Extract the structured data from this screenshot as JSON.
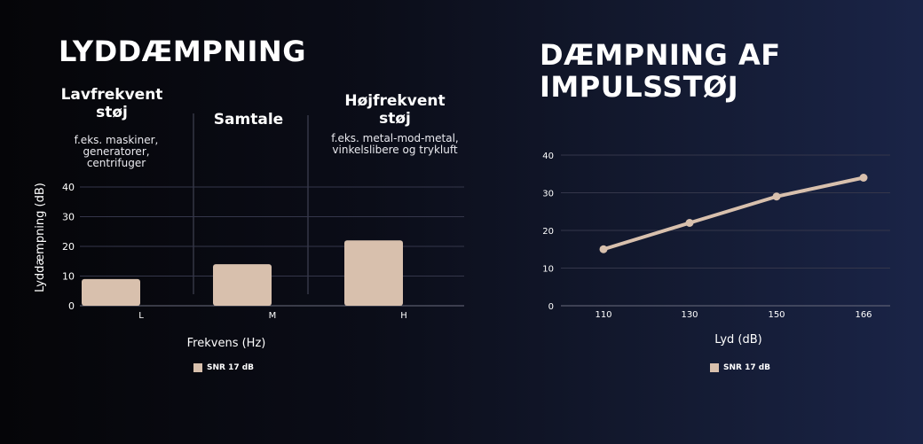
{
  "left": {
    "title": "LYDDÆMPNING",
    "bands": [
      {
        "title_lines": [
          "Lavfrekvent",
          "støj"
        ],
        "desc_lines": [
          "f.eks. maskiner,",
          "generatorer,",
          "centrifuger"
        ]
      },
      {
        "title_lines": [
          "Samtale"
        ],
        "desc_lines": []
      },
      {
        "title_lines": [
          "Højfrekvent",
          "støj"
        ],
        "desc_lines": [
          "f.eks. metal-mod-metal,",
          "vinkelslibere og trykluft"
        ]
      }
    ]
  },
  "right": {
    "title_lines": [
      "DÆMPNING AF",
      "IMPULSSTØJ"
    ]
  },
  "colors": {
    "series": "#d8c0ad",
    "grid": "#34364a",
    "text": "#ffffff"
  },
  "chart_data": [
    {
      "type": "bar",
      "categories": [
        "L",
        "M",
        "H"
      ],
      "series": [
        {
          "name": "SNR 17 dB",
          "values": [
            9,
            14,
            22
          ]
        }
      ],
      "xlabel": "Frekvens (Hz)",
      "ylabel": "Lyddæmpning (dB)",
      "ylim": [
        0,
        40
      ],
      "yticks": [
        0,
        10,
        20,
        30,
        40
      ],
      "grid": true,
      "legend": "bottom-center"
    },
    {
      "type": "line",
      "x": [
        110,
        130,
        150,
        166
      ],
      "series": [
        {
          "name": "SNR 17 dB",
          "values": [
            15,
            22,
            29,
            34
          ]
        }
      ],
      "xlabel": "Lyd (dB)",
      "ylabel": "",
      "ylim": [
        0,
        40
      ],
      "yticks": [
        0,
        10,
        20,
        30,
        40
      ],
      "grid": true,
      "legend": "bottom-center"
    }
  ]
}
